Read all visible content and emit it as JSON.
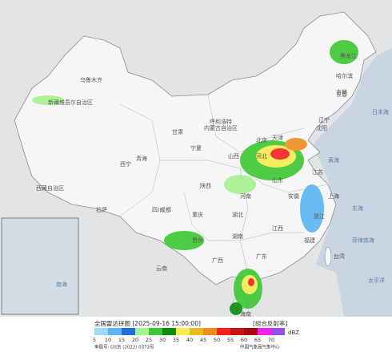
{
  "header": {
    "title": "全国雷达拼图 [2025-09-16 15:00:00]",
    "product": "[组合反射率]"
  },
  "legend": {
    "unit": "dBZ",
    "levels": [
      {
        "value": 5,
        "color": "#a0d8f8"
      },
      {
        "value": 10,
        "color": "#5ab4f0"
      },
      {
        "value": 15,
        "color": "#2070dc"
      },
      {
        "value": 20,
        "color": "#a6f28e"
      },
      {
        "value": 25,
        "color": "#3cc832"
      },
      {
        "value": 30,
        "color": "#0c8c0c"
      },
      {
        "value": 35,
        "color": "#f8ec50"
      },
      {
        "value": 40,
        "color": "#e6bc22"
      },
      {
        "value": 45,
        "color": "#f08c1e"
      },
      {
        "value": 50,
        "color": "#fa2020"
      },
      {
        "value": 55,
        "color": "#c81414"
      },
      {
        "value": 60,
        "color": "#a00a0a"
      },
      {
        "value": 65,
        "color": "#f020f0"
      },
      {
        "value": 70,
        "color": "#9a50e6"
      }
    ]
  },
  "footer": {
    "approval": "审图号: GS京 (2022) 0372号",
    "source": "中国气象局气象中心"
  },
  "places": [
    "乌鲁木齐",
    "新疆维吾尔自治区",
    "西藏自治区",
    "拉萨",
    "青海",
    "西宁",
    "甘肃",
    "内蒙古自治区",
    "呼和浩特",
    "宁夏",
    "北京",
    "天津",
    "河北",
    "山西",
    "陕西",
    "河南",
    "山东",
    "四川",
    "成都",
    "重庆",
    "湖北",
    "江苏",
    "安徽",
    "上海",
    "浙江",
    "湖南",
    "江西",
    "福建",
    "贵州",
    "云南",
    "广西",
    "广东",
    "台湾",
    "海南",
    "黑龙江",
    "吉林",
    "辽宁",
    "哈尔滨",
    "长春",
    "沈阳"
  ],
  "seas": [
    "日本海",
    "黄海",
    "东海",
    "太平洋",
    "南海",
    "菲律宾海"
  ]
}
